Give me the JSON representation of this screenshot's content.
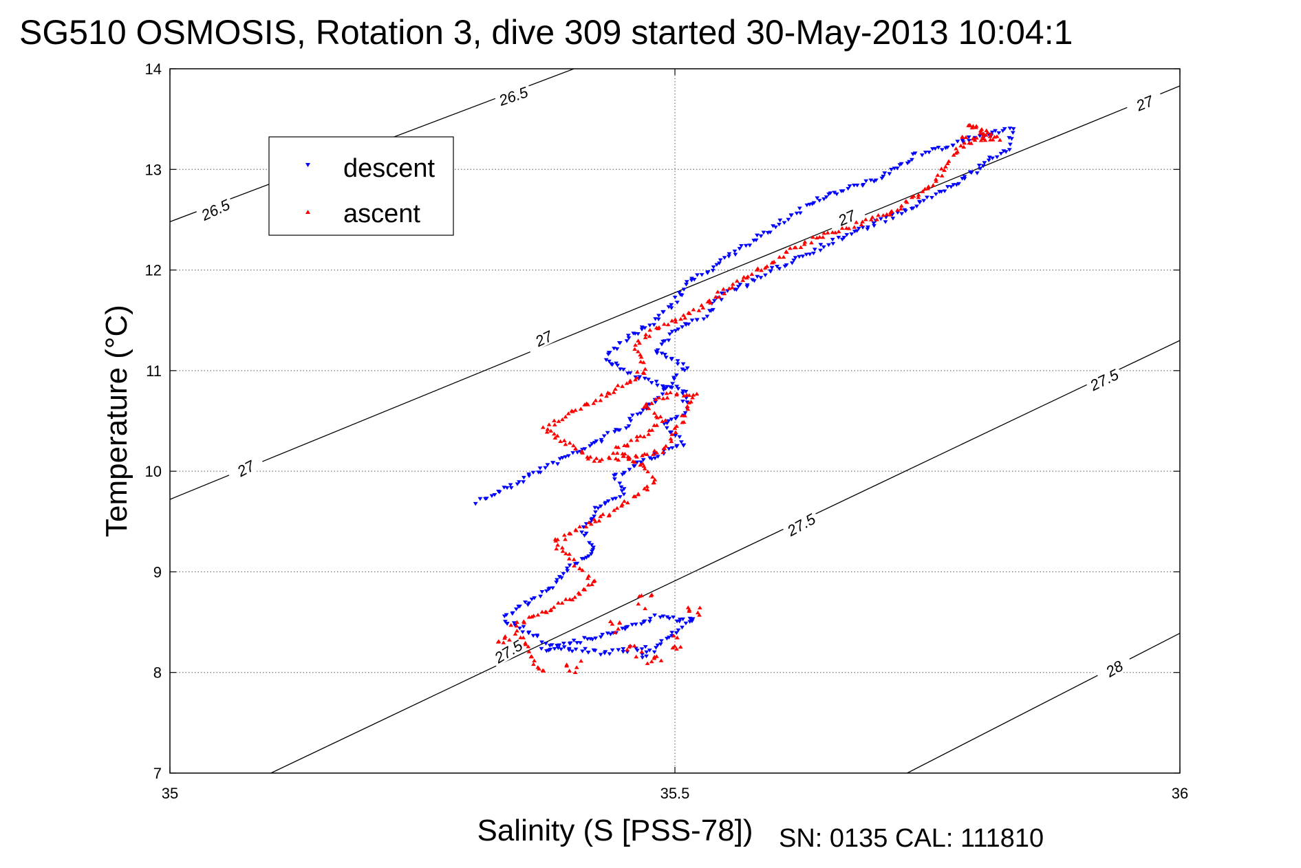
{
  "title": "SG510 OSMOSIS, Rotation 3, dive 309 started 30-May-2013 10:04:1",
  "caption": "SN: 0135  CAL: 111810",
  "chart_data": {
    "type": "scatter",
    "title": "SG510 OSMOSIS, Rotation 3, dive 309 started 30-May-2013 10:04:1",
    "xlabel": "Salinity (S [PSS-78])",
    "ylabel": "Temperature (°C)",
    "xlim": [
      35,
      36
    ],
    "ylim": [
      7,
      14
    ],
    "xticks": [
      "35",
      "35.5",
      "36"
    ],
    "yticks": [
      "7",
      "8",
      "9",
      "10",
      "11",
      "12",
      "13",
      "14"
    ],
    "grid": true,
    "legend": {
      "placement": "top-left",
      "entries": [
        "descent",
        "ascent"
      ]
    },
    "isopycnals": [
      {
        "label": "26.5",
        "points": [
          [
            35.0,
            12.48
          ],
          [
            35.4,
            14.0
          ]
        ]
      },
      {
        "label": "27",
        "points": [
          [
            35.0,
            9.72
          ],
          [
            36.0,
            13.83
          ]
        ]
      },
      {
        "label": "27.5",
        "points": [
          [
            35.1,
            7.0
          ],
          [
            36.0,
            11.3
          ]
        ]
      },
      {
        "label": "28",
        "points": [
          [
            35.73,
            7.0
          ],
          [
            36.0,
            8.39
          ]
        ]
      }
    ],
    "contour_labels": [
      {
        "text": "26.5",
        "x": 35.34,
        "y": 13.73,
        "angle": -19
      },
      {
        "text": "26.5",
        "x": 35.045,
        "y": 12.6,
        "angle": -25
      },
      {
        "text": "27",
        "x": 35.965,
        "y": 13.66,
        "angle": -22
      },
      {
        "text": "27",
        "x": 35.67,
        "y": 12.52,
        "angle": -24
      },
      {
        "text": "27",
        "x": 35.37,
        "y": 11.32,
        "angle": -26
      },
      {
        "text": "27",
        "x": 35.075,
        "y": 10.03,
        "angle": -28
      },
      {
        "text": "27.5",
        "x": 35.925,
        "y": 10.91,
        "angle": -26
      },
      {
        "text": "27.5",
        "x": 35.625,
        "y": 9.47,
        "angle": -29
      },
      {
        "text": "27.5",
        "x": 35.335,
        "y": 8.21,
        "angle": -31
      },
      {
        "text": "28",
        "x": 35.935,
        "y": 8.04,
        "angle": -30
      }
    ],
    "series": [
      {
        "name": "descent",
        "color": "#0000ff",
        "marker": "triangle-down",
        "path": [
          [
            35.305,
            9.7
          ],
          [
            35.33,
            9.82
          ],
          [
            35.36,
            9.98
          ],
          [
            35.38,
            10.08
          ],
          [
            35.42,
            10.28
          ],
          [
            35.45,
            10.45
          ],
          [
            35.47,
            10.62
          ],
          [
            35.49,
            10.8
          ],
          [
            35.51,
            11.05
          ],
          [
            35.48,
            11.2
          ],
          [
            35.5,
            11.4
          ],
          [
            35.53,
            11.55
          ],
          [
            35.55,
            11.78
          ],
          [
            35.58,
            11.9
          ],
          [
            35.62,
            12.12
          ],
          [
            35.67,
            12.35
          ],
          [
            35.72,
            12.55
          ],
          [
            35.76,
            12.76
          ],
          [
            35.8,
            13.0
          ],
          [
            35.83,
            13.22
          ],
          [
            35.835,
            13.4
          ],
          [
            35.79,
            13.3
          ],
          [
            35.74,
            13.15
          ],
          [
            35.7,
            12.9
          ],
          [
            35.64,
            12.7
          ],
          [
            35.57,
            12.25
          ],
          [
            35.53,
            11.98
          ],
          [
            35.51,
            11.85
          ],
          [
            35.5,
            11.68
          ],
          [
            35.48,
            11.5
          ],
          [
            35.45,
            11.3
          ],
          [
            35.43,
            11.12
          ],
          [
            35.46,
            10.95
          ],
          [
            35.51,
            10.8
          ],
          [
            35.51,
            10.6
          ],
          [
            35.49,
            10.45
          ],
          [
            35.51,
            10.28
          ],
          [
            35.47,
            10.1
          ],
          [
            35.44,
            9.95
          ],
          [
            35.45,
            9.8
          ],
          [
            35.42,
            9.6
          ],
          [
            35.41,
            9.4
          ],
          [
            35.42,
            9.2
          ],
          [
            35.39,
            9.0
          ],
          [
            35.38,
            8.85
          ],
          [
            35.35,
            8.68
          ],
          [
            35.33,
            8.52
          ],
          [
            35.36,
            8.38
          ],
          [
            35.38,
            8.25
          ],
          [
            35.43,
            8.2
          ],
          [
            35.47,
            8.25
          ],
          [
            35.47,
            8.15
          ],
          [
            35.49,
            8.35
          ],
          [
            35.52,
            8.52
          ],
          [
            35.48,
            8.55
          ],
          [
            35.44,
            8.4
          ],
          [
            35.4,
            8.3
          ],
          [
            35.365,
            8.22
          ]
        ]
      },
      {
        "name": "ascent",
        "color": "#ff0000",
        "marker": "triangle-up",
        "path": [
          [
            35.37,
            8.0
          ],
          [
            35.36,
            8.12
          ],
          [
            35.35,
            8.3
          ],
          [
            35.34,
            8.45
          ],
          [
            35.37,
            8.6
          ],
          [
            35.4,
            8.75
          ],
          [
            35.42,
            8.9
          ],
          [
            35.4,
            9.1
          ],
          [
            35.38,
            9.3
          ],
          [
            35.41,
            9.45
          ],
          [
            35.44,
            9.6
          ],
          [
            35.46,
            9.75
          ],
          [
            35.48,
            9.9
          ],
          [
            35.47,
            10.05
          ],
          [
            35.44,
            10.2
          ],
          [
            35.47,
            10.35
          ],
          [
            35.49,
            10.5
          ],
          [
            35.47,
            10.65
          ],
          [
            35.5,
            10.78
          ],
          [
            35.52,
            10.75
          ],
          [
            35.49,
            10.2
          ],
          [
            35.42,
            10.1
          ],
          [
            35.39,
            10.3
          ],
          [
            35.37,
            10.42
          ],
          [
            35.4,
            10.6
          ],
          [
            35.44,
            10.8
          ],
          [
            35.47,
            11.0
          ],
          [
            35.46,
            11.25
          ],
          [
            35.48,
            11.4
          ],
          [
            35.52,
            11.6
          ],
          [
            35.55,
            11.8
          ],
          [
            35.58,
            11.98
          ],
          [
            35.6,
            12.1
          ],
          [
            35.63,
            12.28
          ],
          [
            35.68,
            12.45
          ],
          [
            35.72,
            12.6
          ],
          [
            35.76,
            12.9
          ],
          [
            35.78,
            13.2
          ],
          [
            35.81,
            13.35
          ],
          [
            35.79,
            13.45
          ],
          [
            35.82,
            13.3
          ],
          [
            35.8,
            13.3
          ],
          [
            35.78,
            13.3
          ]
        ],
        "extra_clusters": [
          [
            35.46,
            8.2
          ],
          [
            35.48,
            8.1
          ],
          [
            35.5,
            8.3
          ],
          [
            35.47,
            8.7
          ],
          [
            35.52,
            8.58
          ],
          [
            35.44,
            8.45
          ],
          [
            35.4,
            8.05
          ],
          [
            35.33,
            8.35
          ]
        ]
      }
    ]
  }
}
